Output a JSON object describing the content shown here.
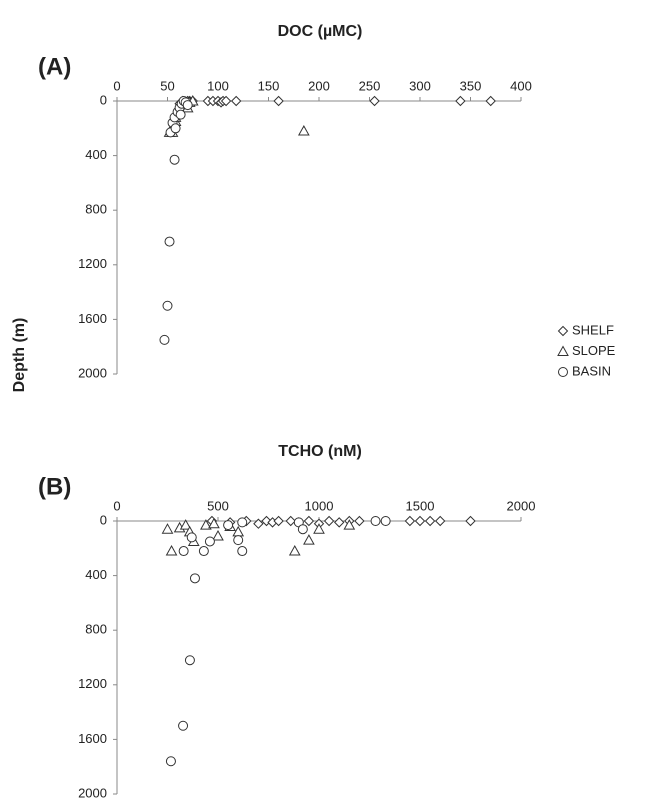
{
  "chart_data": [
    {
      "type": "scatter",
      "panel": "(A)",
      "title": "DOC (µMC)",
      "ylabel": "Depth (m)",
      "xlim": [
        0,
        400
      ],
      "xticks": [
        0,
        50,
        100,
        150,
        200,
        250,
        300,
        350,
        400
      ],
      "ylim": [
        0,
        2000
      ],
      "yticks": [
        0,
        400,
        800,
        1200,
        1600,
        2000
      ],
      "y_reversed": true,
      "x_axis_position": "top",
      "series": [
        {
          "name": "SHELF",
          "marker": "diamond",
          "color": "#333333",
          "x": [
            62,
            65,
            68,
            70,
            72,
            75,
            90,
            95,
            100,
            103,
            105,
            108,
            118,
            160,
            255,
            340,
            370
          ],
          "y": [
            20,
            0,
            10,
            0,
            0,
            0,
            0,
            0,
            0,
            10,
            0,
            0,
            0,
            0,
            0,
            0,
            0
          ]
        },
        {
          "name": "SLOPE",
          "marker": "triangle",
          "color": "#333333",
          "x": [
            52,
            55,
            58,
            60,
            62,
            65,
            68,
            70,
            72,
            75,
            185,
            60,
            55,
            58
          ],
          "y": [
            230,
            200,
            150,
            100,
            60,
            30,
            20,
            50,
            10,
            0,
            220,
            80,
            230,
            120
          ]
        },
        {
          "name": "BASIN",
          "marker": "circle",
          "color": "#333333",
          "x": [
            53,
            55,
            57,
            60,
            62,
            64,
            66,
            68,
            70,
            57,
            52,
            50,
            47,
            63,
            58
          ],
          "y": [
            230,
            160,
            120,
            80,
            50,
            20,
            0,
            10,
            30,
            430,
            1030,
            1500,
            1750,
            100,
            200
          ]
        }
      ]
    },
    {
      "type": "scatter",
      "panel": "(B)",
      "title": "TCHO (nM)",
      "xlim": [
        0,
        2000
      ],
      "xticks": [
        0,
        500,
        1000,
        1500,
        2000
      ],
      "ylim": [
        0,
        2000
      ],
      "yticks": [
        0,
        400,
        800,
        1200,
        1600,
        2000
      ],
      "y_reversed": true,
      "x_axis_position": "top",
      "series": [
        {
          "marker": "diamond",
          "color": "#333333",
          "x": [
            470,
            560,
            640,
            700,
            740,
            770,
            800,
            860,
            900,
            950,
            1000,
            1050,
            1100,
            1150,
            1200,
            1450,
            1500,
            1550,
            1600,
            1750
          ],
          "y": [
            0,
            10,
            0,
            20,
            0,
            10,
            0,
            0,
            10,
            0,
            20,
            0,
            10,
            0,
            0,
            0,
            0,
            0,
            0,
            0
          ]
        },
        {
          "marker": "triangle",
          "color": "#333333",
          "x": [
            250,
            270,
            310,
            340,
            360,
            380,
            440,
            480,
            500,
            560,
            600,
            880,
            950,
            1000,
            1150
          ],
          "y": [
            60,
            220,
            50,
            30,
            80,
            150,
            30,
            20,
            110,
            40,
            80,
            220,
            140,
            60,
            30
          ]
        },
        {
          "marker": "circle",
          "color": "#333333",
          "x": [
            330,
            370,
            430,
            460,
            600,
            620,
            386,
            361,
            327,
            267,
            550,
            620,
            900,
            920,
            1280,
            1330
          ],
          "y": [
            220,
            120,
            220,
            150,
            140,
            220,
            420,
            1020,
            1500,
            1760,
            30,
            10,
            10,
            60,
            0,
            0
          ]
        }
      ]
    }
  ]
}
